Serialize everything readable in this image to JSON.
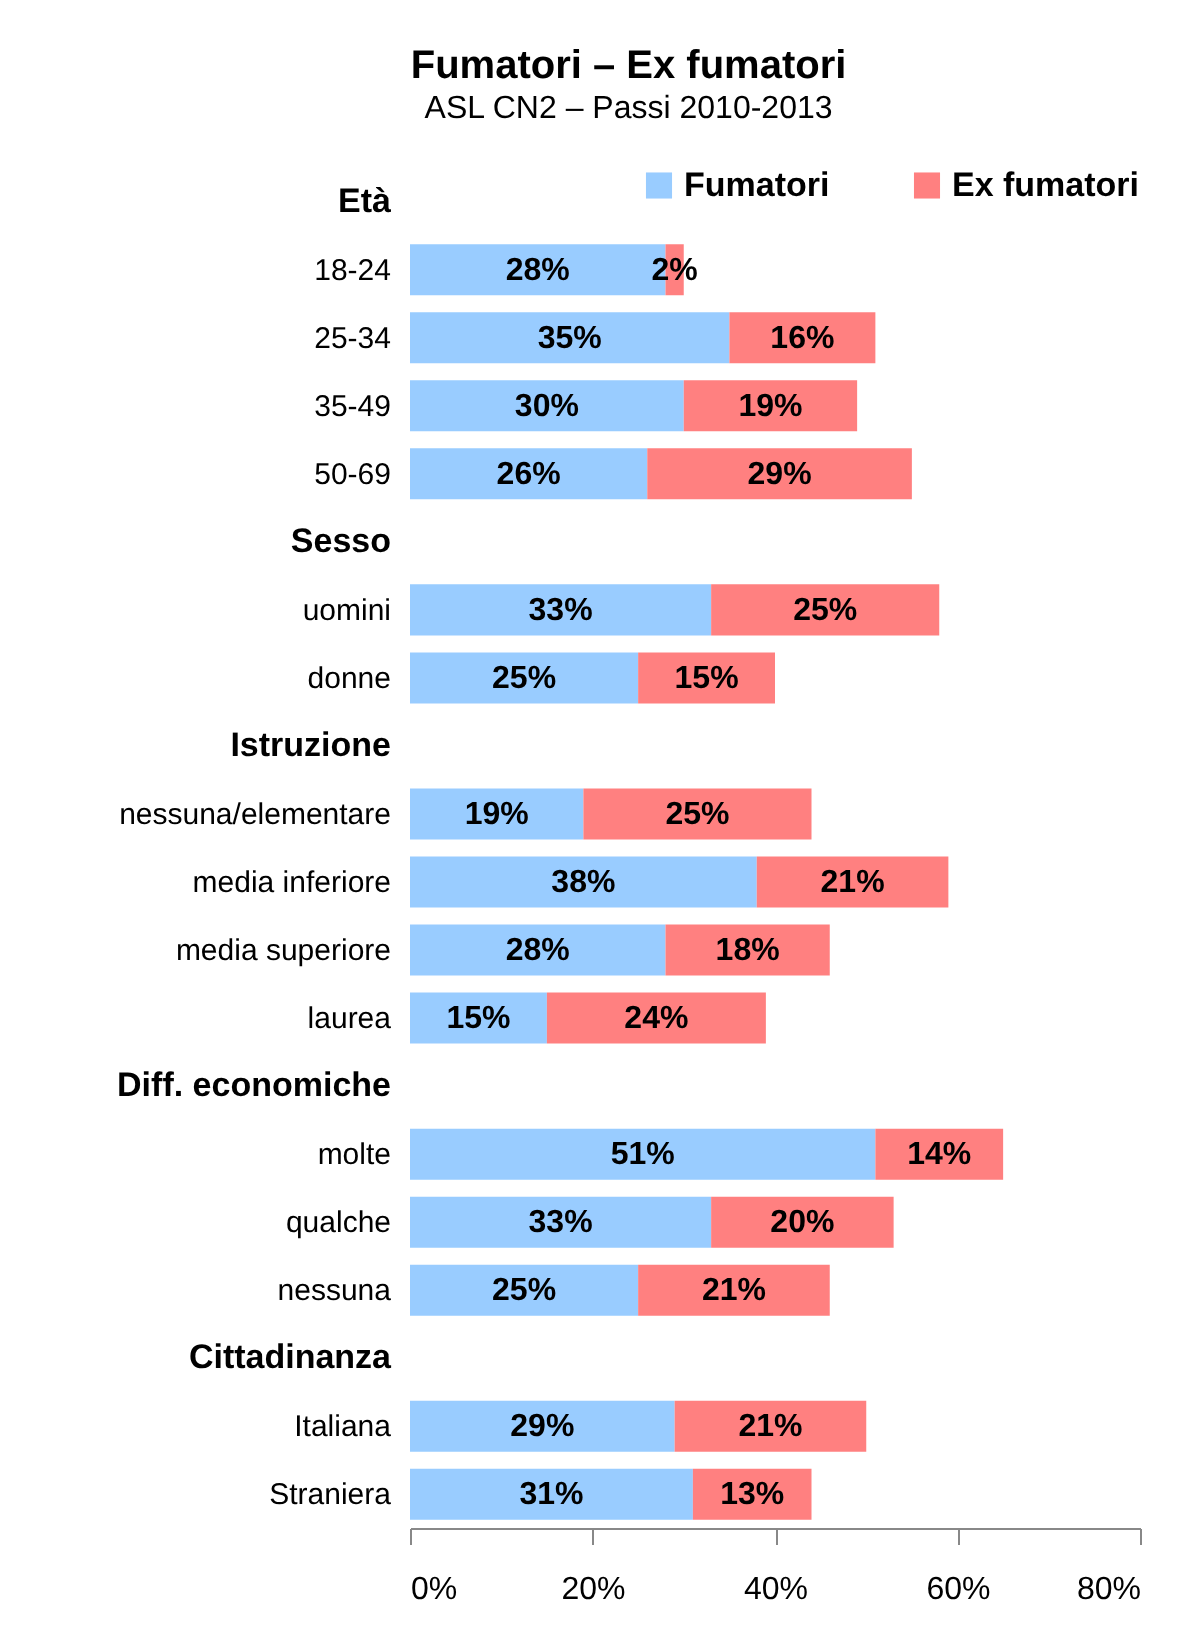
{
  "chart_data": {
    "type": "bar",
    "title": "Fumatori – Ex fumatori",
    "subtitle": "ASL CN2 – Passi 2010-2013",
    "orientation": "horizontal",
    "stacked": true,
    "legend": "top right",
    "categories": [
      "Età",
      "18-24",
      "25-34",
      "35-49",
      "50-69",
      "Sesso",
      "uomini",
      "donne",
      "Istruzione",
      "nessuna/elementare",
      "media inferiore",
      "media superiore",
      "laurea",
      "Diff. economiche",
      "molte",
      "qualche",
      "nessuna",
      "Cittadinanza",
      "Italiana",
      "Straniera"
    ],
    "series": [
      {
        "name": "Fumatori",
        "color": "#99ccff",
        "values": [
          null,
          28,
          35,
          30,
          26,
          null,
          33,
          25,
          null,
          19,
          38,
          28,
          15,
          null,
          51,
          33,
          25,
          null,
          29,
          31
        ],
        "value_labels": [
          null,
          "28%",
          "35%",
          "30%",
          "26%",
          null,
          "33%",
          "25%",
          null,
          "19%",
          "38%",
          "28%",
          "15%",
          null,
          "51%",
          "33%",
          "25%",
          null,
          "29%",
          "31%"
        ]
      },
      {
        "name": "Ex fumatori",
        "color": "#ff8080",
        "values": [
          null,
          2,
          16,
          19,
          29,
          null,
          25,
          15,
          null,
          25,
          21,
          18,
          24,
          null,
          14,
          20,
          21,
          null,
          21,
          13
        ],
        "value_labels": [
          null,
          "2%",
          "16%",
          "19%",
          "29%",
          null,
          "25%",
          "15%",
          null,
          "25%",
          "21%",
          "18%",
          "24%",
          null,
          "14%",
          "20%",
          "21%",
          null,
          "21%",
          "13%"
        ]
      }
    ],
    "xlim": [
      0,
      80
    ],
    "xticks": [
      {
        "value": 0,
        "label": "0%"
      },
      {
        "value": 20,
        "label": "20%"
      },
      {
        "value": 40,
        "label": "40%"
      },
      {
        "value": 60,
        "label": "60%"
      },
      {
        "value": 80,
        "label": "80%"
      }
    ]
  }
}
